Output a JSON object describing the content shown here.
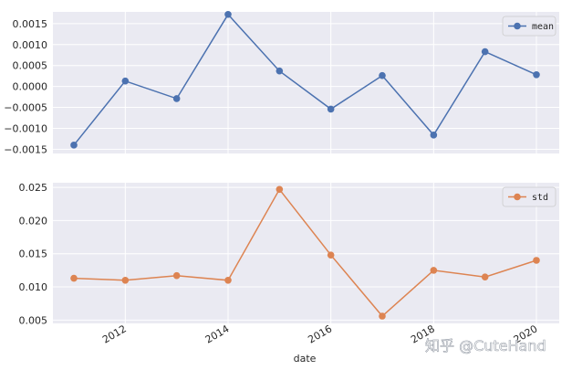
{
  "chart_data": {
    "type": "line",
    "shared_x": true,
    "x": [
      "2011",
      "2012",
      "2013",
      "2014",
      "2015",
      "2016",
      "2017",
      "2018",
      "2019",
      "2020"
    ],
    "xlabel": "date",
    "xticks": [
      "2012",
      "2014",
      "2016",
      "2018",
      "2020"
    ],
    "background": "#eaeaf2",
    "grid": true,
    "panels": [
      {
        "series": [
          {
            "name": "mean",
            "color": "#4c72b0",
            "values": [
              -0.0014,
              0.00013,
              -0.00029,
              0.00172,
              0.00037,
              -0.00054,
              0.00026,
              -0.00116,
              0.00083,
              0.00028
            ]
          }
        ],
        "ylim": [
          -0.0016,
          0.00178
        ],
        "yticks": [
          -0.0015,
          -0.001,
          -0.0005,
          0.0,
          0.0005,
          0.001,
          0.0015
        ],
        "ytick_labels": [
          "−0.0015",
          "−0.0010",
          "−0.0005",
          "0.0000",
          "0.0005",
          "0.0010",
          "0.0015"
        ],
        "legend": "top-right"
      },
      {
        "series": [
          {
            "name": "std",
            "color": "#dd8452",
            "values": [
              0.0113,
              0.011,
              0.0117,
              0.011,
              0.0247,
              0.0148,
              0.0056,
              0.0125,
              0.0115,
              0.014
            ]
          }
        ],
        "ylim": [
          0.0045,
          0.0257
        ],
        "yticks": [
          0.005,
          0.01,
          0.015,
          0.02,
          0.025
        ],
        "ytick_labels": [
          "0.005",
          "0.010",
          "0.015",
          "0.020",
          "0.025"
        ],
        "legend": "top-right"
      }
    ]
  },
  "watermark": "知乎 @CuteHand"
}
